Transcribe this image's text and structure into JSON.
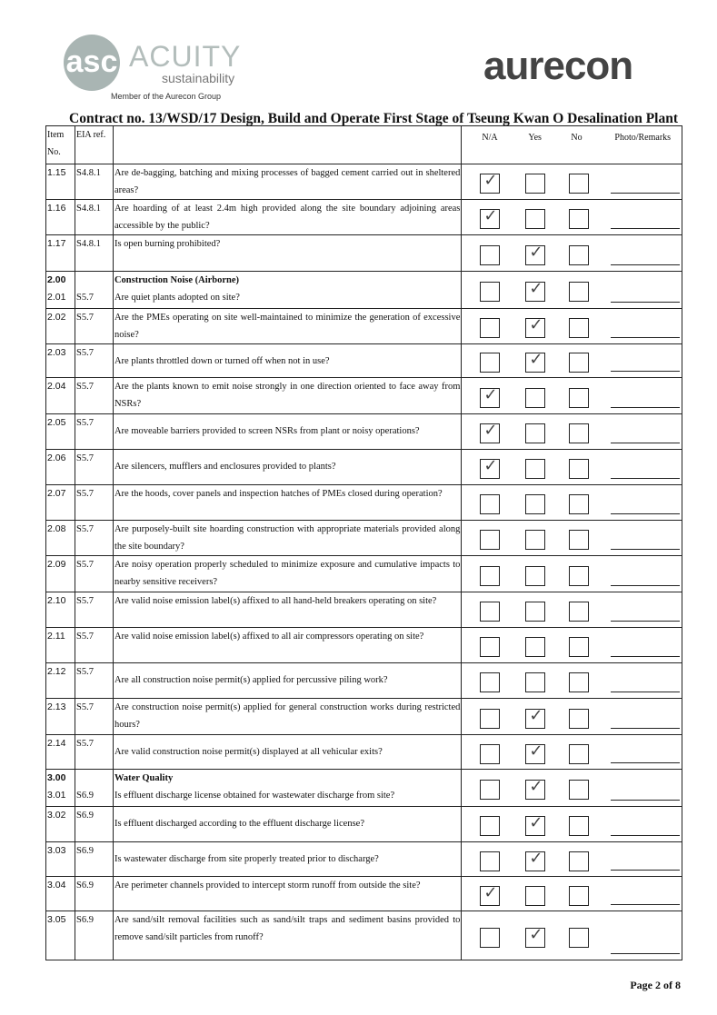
{
  "header": {
    "acuity_logo_text": "asc",
    "acuity_name": "ACUITY",
    "acuity_sub": "sustainability",
    "member": "Member of the Aurecon Group",
    "aurecon_logo": "aurecon",
    "title": "Contract no.  13/WSD/17 Design, Build and Operate First Stage of Tseung Kwan O Desalination Plant"
  },
  "columns": {
    "item": "Item No.",
    "ref": "EIA ref.",
    "na": "N/A",
    "yes": "Yes",
    "no": "No",
    "remarks": "Photo/Remarks"
  },
  "check_glyph": "✓",
  "rows": [
    {
      "item": "1.15",
      "ref": "S4.8.1",
      "q": "Are de-bagging, batching and mixing processes of bagged cement carried out in sheltered areas?",
      "answer": "na",
      "h": 38
    },
    {
      "item": "1.16",
      "ref": "S4.8.1",
      "q": "Are hoarding of at least 2.4m high provided along the site boundary adjoining areas accessible by the public?",
      "answer": "na",
      "h": 39
    },
    {
      "item": "1.17",
      "ref": "S4.8.1",
      "q": "Is open burning prohibited?",
      "answer": "yes",
      "h": 40
    },
    {
      "item": "2.00",
      "ref": "",
      "section": "Construction Noise (Airborne)",
      "item2": "2.01",
      "ref2": "S5.7",
      "q": "Are quiet plants adopted on site?",
      "answer": "yes",
      "h": 41
    },
    {
      "item": "2.02",
      "ref": "S5.7",
      "q": "Are the PMEs operating on site well-maintained to minimize the generation of excessive noise?",
      "answer": "yes",
      "h": 39
    },
    {
      "item": "2.03",
      "ref": "S5.7",
      "q": "Are plants throttled down or turned off when not in use?",
      "answer": "yes",
      "h": 37
    },
    {
      "item": "2.04",
      "ref": "S5.7",
      "q": "Are the plants known to emit noise strongly in one direction oriented to face away from NSRs?",
      "answer": "na",
      "h": 40
    },
    {
      "item": "2.05",
      "ref": "S5.7",
      "q": "Are moveable barriers provided to screen NSRs from plant or noisy operations?",
      "answer": "na",
      "h": 39
    },
    {
      "item": "2.06",
      "ref": "S5.7",
      "q": "Are silencers, mufflers and enclosures provided to plants?",
      "answer": "na",
      "h": 39
    },
    {
      "item": "2.07",
      "ref": "S5.7",
      "q": "Are the hoods, cover panels and inspection hatches of PMEs closed during operation?",
      "answer": "",
      "h": 39
    },
    {
      "item": "2.08",
      "ref": "S5.7",
      "q": "Are purposely-built site hoarding construction with appropriate materials provided along the site boundary?",
      "answer": "",
      "h": 39
    },
    {
      "item": "2.09",
      "ref": "S5.7",
      "q": "Are noisy operation properly scheduled to minimize exposure and cumulative impacts to nearby sensitive receivers?",
      "answer": "",
      "h": 40
    },
    {
      "item": "2.10",
      "ref": "S5.7",
      "q": "Are valid noise emission label(s) affixed to all hand-held breakers operating on site?",
      "answer": "",
      "h": 39
    },
    {
      "item": "2.11",
      "ref": "S5.7",
      "q": "Are valid noise emission label(s) affixed to all air compressors operating on site?",
      "answer": "",
      "h": 39
    },
    {
      "item": "2.12",
      "ref": "S5.7",
      "q": "Are all construction noise permit(s) applied for percussive piling work?",
      "answer": "",
      "h": 39
    },
    {
      "item": "2.13",
      "ref": "S5.7",
      "q": "Are construction noise permit(s) applied for general construction works during restricted hours?",
      "answer": "yes",
      "h": 40
    },
    {
      "item": "2.14",
      "ref": "S5.7",
      "q": "Are valid construction noise permit(s) displayed at all vehicular exits?",
      "answer": "yes",
      "h": 38
    },
    {
      "item": "3.00",
      "ref": "",
      "section": "Water Quality",
      "item2": "3.01",
      "ref2": "S6.9",
      "q": "Is effluent discharge license obtained for wastewater discharge from site?",
      "answer": "yes",
      "h": 41
    },
    {
      "item": "3.02",
      "ref": "S6.9",
      "q": "Is effluent discharged according to the effluent discharge license?",
      "answer": "yes",
      "h": 39
    },
    {
      "item": "3.03",
      "ref": "S6.9",
      "q": "Is wastewater discharge from site properly treated prior to discharge?",
      "answer": "yes",
      "h": 38
    },
    {
      "item": "3.04",
      "ref": "S6.9",
      "q": "Are perimeter channels provided to intercept storm runoff from outside the site?",
      "answer": "na",
      "h": 38
    },
    {
      "item": "3.05",
      "ref": "S6.9",
      "q": "Are sand/silt removal facilities such as sand/silt traps and sediment basins provided to remove sand/silt particles from runoff?",
      "answer": "yes",
      "h": 54
    }
  ],
  "footer": {
    "page": "Page 2 of 8"
  }
}
